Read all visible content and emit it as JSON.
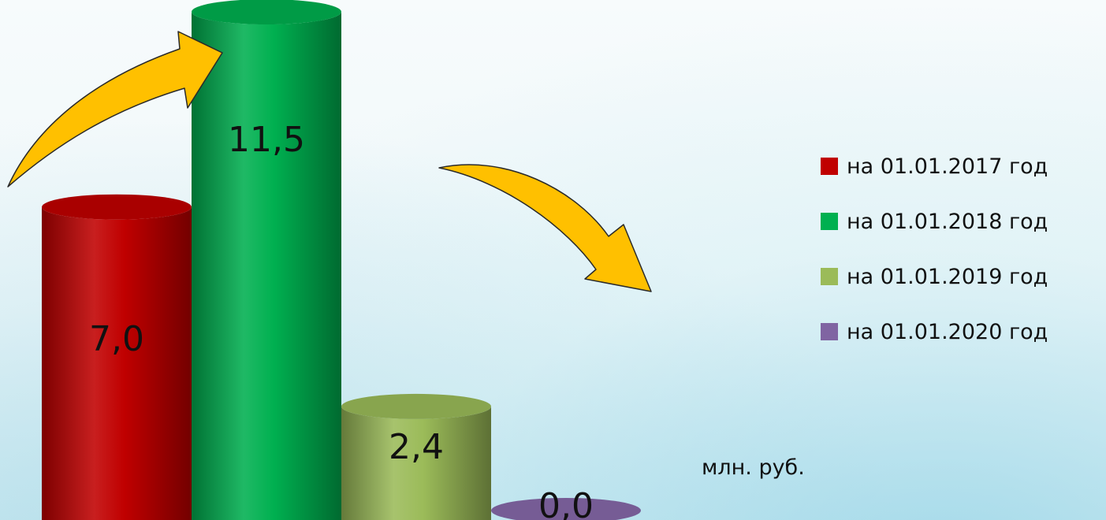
{
  "chart_data": {
    "type": "bar",
    "style": "3d-cylinder",
    "categories": [
      "на 01.01.2017 год",
      "на 01.01.2018 год",
      "на 01.01.2019 год",
      "на 01.01.2020 год"
    ],
    "values": [
      7.0,
      11.5,
      2.4,
      0.0
    ],
    "data_labels": [
      "7,0",
      "11,5",
      "2,4",
      "0,0"
    ],
    "colors": [
      "#c00000",
      "#00b050",
      "#9bbb59",
      "#8064a2"
    ],
    "unit": "млн. руб.",
    "legend_position": "right",
    "grid": false,
    "axes_visible": false,
    "ylim": [
      0,
      11.5
    ],
    "annotations": [
      "arrow-up",
      "arrow-down"
    ],
    "arrow_color": "#ffc000"
  },
  "legend": {
    "items": [
      {
        "label": "на 01.01.2017 год",
        "color": "#c00000"
      },
      {
        "label": "на 01.01.2018 год",
        "color": "#00b050"
      },
      {
        "label": "на 01.01.2019 год",
        "color": "#9bbb59"
      },
      {
        "label": "на 01.01.2020 год",
        "color": "#8064a2"
      }
    ]
  },
  "unit_label": "млн. руб."
}
